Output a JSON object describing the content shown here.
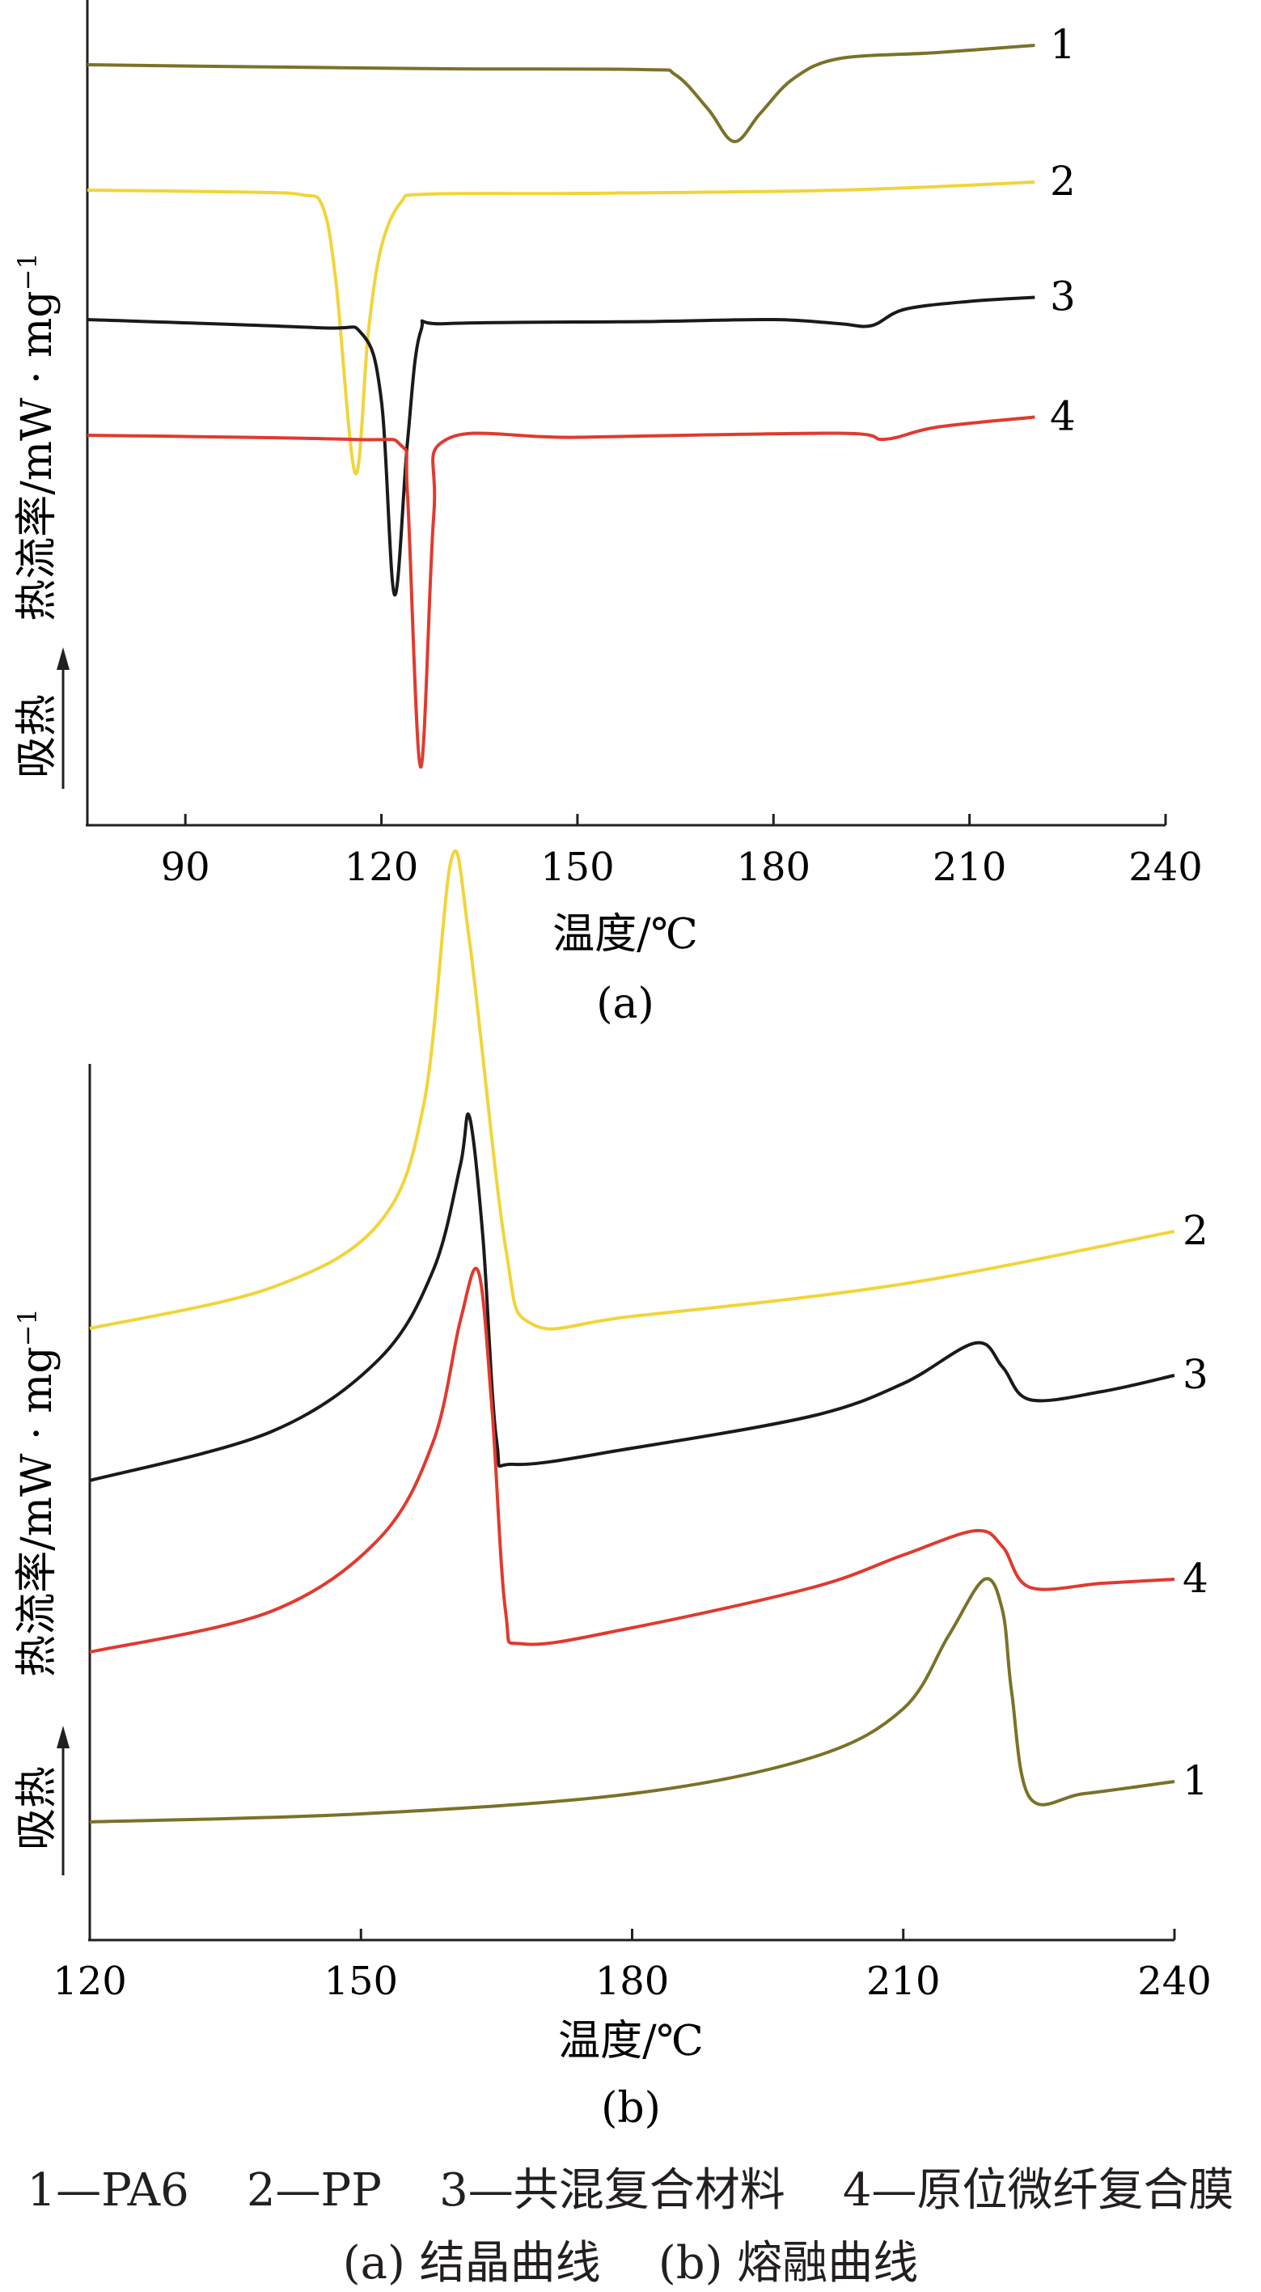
{
  "chart_data": [
    {
      "type": "line",
      "panel_label": "(a)",
      "xlabel": "温度/℃",
      "ylabel": "热流率/mW · mg",
      "ylabel_sup": "−1",
      "direction_label": "吸热",
      "xlim": [
        75,
        240
      ],
      "xticks": [
        90,
        120,
        150,
        180,
        210,
        240
      ],
      "yticks": "none",
      "grid": false,
      "legend": "curve numbers at right end",
      "series": [
        {
          "name": "1",
          "color": "#7a7228",
          "points": [
            [
              75,
              0.0
            ],
            [
              100,
              -0.05
            ],
            [
              130,
              -0.1
            ],
            [
              160,
              -0.12
            ],
            [
              165,
              -0.25
            ],
            [
              170,
              -1.1
            ],
            [
              174,
              -1.9
            ],
            [
              178,
              -1.2
            ],
            [
              183,
              -0.35
            ],
            [
              190,
              0.15
            ],
            [
              205,
              0.3
            ],
            [
              220,
              0.48
            ]
          ]
        },
        {
          "name": "2",
          "color": "#f2d43a",
          "points": [
            [
              75,
              0.0
            ],
            [
              100,
              -0.05
            ],
            [
              108,
              -0.12
            ],
            [
              111,
              -0.4
            ],
            [
              113,
              -2.2
            ],
            [
              116,
              -7.0
            ],
            [
              118,
              -3.5
            ],
            [
              120,
              -1.4
            ],
            [
              123,
              -0.3
            ],
            [
              127,
              -0.1
            ],
            [
              150,
              -0.08
            ],
            [
              190,
              0.0
            ],
            [
              220,
              0.2
            ]
          ]
        },
        {
          "name": "3",
          "color": "#1a1a1a",
          "points": [
            [
              75,
              0.0
            ],
            [
              110,
              -0.2
            ],
            [
              117,
              -0.35
            ],
            [
              120,
              -2.0
            ],
            [
              122,
              -6.8
            ],
            [
              124,
              -3.0
            ],
            [
              126,
              -0.3
            ],
            [
              130,
              -0.1
            ],
            [
              160,
              -0.05
            ],
            [
              180,
              0.0
            ],
            [
              190,
              -0.1
            ],
            [
              195,
              -0.15
            ],
            [
              200,
              0.25
            ],
            [
              210,
              0.45
            ],
            [
              220,
              0.55
            ]
          ]
        },
        {
          "name": "4",
          "color": "#e03a2f",
          "points": [
            [
              75,
              0.0
            ],
            [
              115,
              -0.1
            ],
            [
              123,
              -0.25
            ],
            [
              124,
              -1.5
            ],
            [
              126,
              -8.2
            ],
            [
              128,
              -2.0
            ],
            [
              130,
              -0.1
            ],
            [
              150,
              -0.05
            ],
            [
              190,
              0.05
            ],
            [
              197,
              -0.1
            ],
            [
              205,
              0.2
            ],
            [
              220,
              0.45
            ]
          ]
        }
      ]
    },
    {
      "type": "line",
      "panel_label": "(b)",
      "xlabel": "温度/℃",
      "ylabel": "热流率/mW · mg",
      "ylabel_sup": "−1",
      "direction_label": "吸热",
      "xlim": [
        120,
        240
      ],
      "xticks": [
        120,
        150,
        180,
        210,
        240
      ],
      "yticks": "none",
      "grid": false,
      "legend": "curve numbers at right end",
      "series": [
        {
          "name": "2",
          "color": "#f2d43a",
          "points": [
            [
              120,
              0.0
            ],
            [
              140,
              0.5
            ],
            [
              152,
              1.3
            ],
            [
              157,
              2.8
            ],
            [
              160,
              5.8
            ],
            [
              162,
              4.8
            ],
            [
              166,
              1.0
            ],
            [
              169,
              0.05
            ],
            [
              180,
              0.15
            ],
            [
              210,
              0.55
            ],
            [
              240,
              1.2
            ]
          ]
        },
        {
          "name": "3",
          "color": "#1a1a1a",
          "points": [
            [
              120,
              0.0
            ],
            [
              140,
              0.6
            ],
            [
              152,
              1.5
            ],
            [
              158,
              2.6
            ],
            [
              161,
              3.9
            ],
            [
              162,
              4.5
            ],
            [
              163.5,
              3.0
            ],
            [
              165,
              0.5
            ],
            [
              167,
              0.2
            ],
            [
              180,
              0.4
            ],
            [
              200,
              0.8
            ],
            [
              210,
              1.2
            ],
            [
              218,
              1.7
            ],
            [
              221,
              1.4
            ],
            [
              224,
              1.0
            ],
            [
              232,
              1.1
            ],
            [
              240,
              1.3
            ]
          ]
        },
        {
          "name": "4",
          "color": "#e03a2f",
          "points": [
            [
              120,
              0.0
            ],
            [
              140,
              0.5
            ],
            [
              152,
              1.4
            ],
            [
              158,
              2.6
            ],
            [
              161,
              4.1
            ],
            [
              163,
              4.7
            ],
            [
              164.5,
              3.0
            ],
            [
              166,
              0.5
            ],
            [
              168,
              0.1
            ],
            [
              180,
              0.3
            ],
            [
              200,
              0.8
            ],
            [
              210,
              1.2
            ],
            [
              218,
              1.5
            ],
            [
              221,
              1.3
            ],
            [
              224,
              0.8
            ],
            [
              232,
              0.85
            ],
            [
              240,
              0.9
            ]
          ]
        },
        {
          "name": "1",
          "color": "#7a7228",
          "points": [
            [
              120,
              0.0
            ],
            [
              150,
              0.1
            ],
            [
              180,
              0.35
            ],
            [
              200,
              0.8
            ],
            [
              210,
              1.4
            ],
            [
              215,
              2.3
            ],
            [
              219,
              3.0
            ],
            [
              221,
              2.6
            ],
            [
              222,
              1.6
            ],
            [
              224,
              0.3
            ],
            [
              230,
              0.35
            ],
            [
              240,
              0.5
            ]
          ]
        }
      ]
    }
  ],
  "caption": {
    "legend_line": "1—PA6    2—PP    3—共混复合材料    4—原位微纤复合膜",
    "subtitle_line": "(a) 结晶曲线    (b) 熔融曲线"
  }
}
